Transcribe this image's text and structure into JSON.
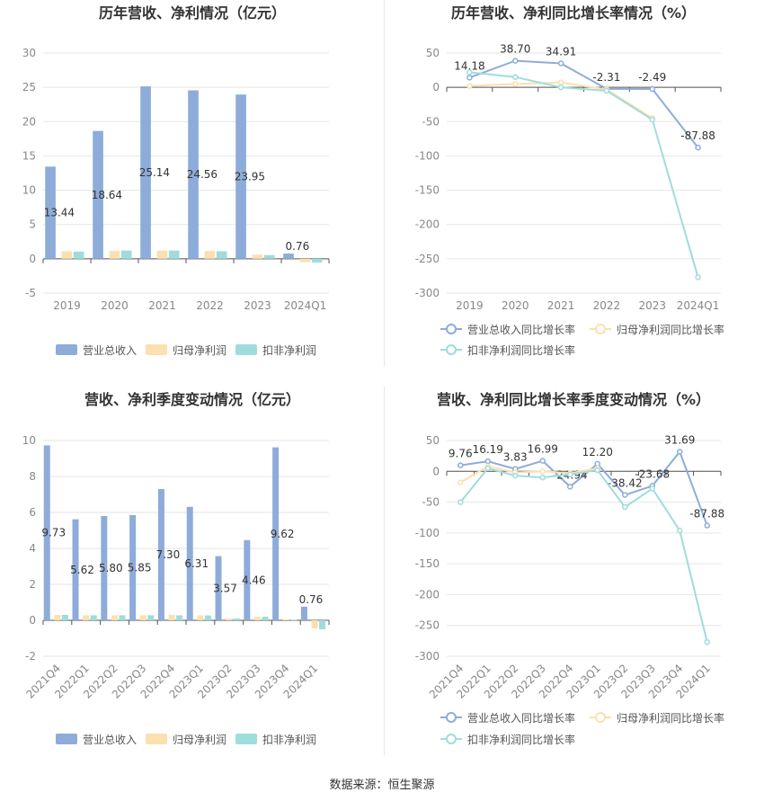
{
  "source": "数据来源：恒生聚源",
  "chart_data": [
    {
      "type": "bar",
      "title": "历年营收、净利情况（亿元）",
      "categories": [
        "2019",
        "2020",
        "2021",
        "2022",
        "2023",
        "2024Q1"
      ],
      "ylim": [
        -5,
        30
      ],
      "yticks": [
        30,
        25,
        20,
        15,
        10,
        5,
        0,
        -5
      ],
      "series": [
        {
          "name": "营业总收入",
          "color": "#8eacd9",
          "values": [
            13.44,
            18.64,
            25.14,
            24.56,
            23.95,
            0.76
          ],
          "labels": [
            "13.44",
            "18.64",
            "25.14",
            "24.56",
            "23.95",
            "0.76"
          ]
        },
        {
          "name": "归母净利润",
          "color": "#fbe0b0",
          "values": [
            1.1,
            1.15,
            1.2,
            1.15,
            0.6,
            -0.5
          ]
        },
        {
          "name": "扣非净利润",
          "color": "#9fdcdc",
          "values": [
            1.05,
            1.2,
            1.2,
            1.1,
            0.55,
            -0.55
          ]
        }
      ],
      "grid": true,
      "legend": "bottom"
    },
    {
      "type": "line",
      "title": "历年营收、净利同比增长率情况（%）",
      "categories": [
        "2019",
        "2020",
        "2021",
        "2022",
        "2023",
        "2024Q1"
      ],
      "ylim": [
        -300,
        50
      ],
      "yticks": [
        50,
        0,
        -50,
        -100,
        -150,
        -200,
        -250,
        -300
      ],
      "series": [
        {
          "name": "营业总收入同比增长率",
          "color": "#8eacd9",
          "values": [
            14.18,
            38.7,
            34.91,
            -2.31,
            -2.49,
            -87.88
          ],
          "labels": [
            "14.18",
            "38.70",
            "34.91",
            "-2.31",
            "-2.49",
            "-87.88"
          ]
        },
        {
          "name": "归母净利润同比增长率",
          "color": "#fbe0b0",
          "values": [
            2,
            5,
            7,
            -3,
            -45,
            null
          ]
        },
        {
          "name": "扣非净利润同比增长率",
          "color": "#9fdcdc",
          "values": [
            22,
            15,
            0,
            -5,
            -47,
            -277
          ]
        }
      ],
      "grid": true,
      "legend": "bottom"
    },
    {
      "type": "bar",
      "title": "营收、净利季度变动情况（亿元）",
      "categories": [
        "2021Q4",
        "2022Q1",
        "2022Q2",
        "2022Q3",
        "2022Q4",
        "2023Q1",
        "2023Q2",
        "2023Q3",
        "2023Q4",
        "2024Q1"
      ],
      "ylim": [
        -2,
        10
      ],
      "yticks": [
        10,
        8,
        6,
        4,
        2,
        0,
        -2
      ],
      "series": [
        {
          "name": "营业总收入",
          "color": "#8eacd9",
          "values": [
            9.73,
            5.62,
            5.8,
            5.85,
            7.3,
            6.31,
            3.57,
            4.46,
            9.62,
            0.76
          ],
          "labels": [
            "9.73",
            "5.62",
            "5.80",
            "5.85",
            "7.30",
            "6.31",
            "3.57",
            "4.46",
            "9.62",
            "0.76"
          ]
        },
        {
          "name": "归母净利润",
          "color": "#fbe0b0",
          "values": [
            0.3,
            0.28,
            0.28,
            0.28,
            0.3,
            0.28,
            0.1,
            0.2,
            0.05,
            -0.45
          ]
        },
        {
          "name": "扣非净利润",
          "color": "#9fdcdc",
          "values": [
            0.3,
            0.28,
            0.28,
            0.28,
            0.28,
            0.27,
            0.1,
            0.2,
            0.02,
            -0.5
          ]
        }
      ],
      "grid": true,
      "legend": "bottom"
    },
    {
      "type": "line",
      "title": "营收、净利同比增长率季度变动情况（%）",
      "categories": [
        "2021Q4",
        "2022Q1",
        "2022Q2",
        "2022Q3",
        "2022Q4",
        "2023Q1",
        "2023Q2",
        "2023Q3",
        "2023Q4",
        "2024Q1"
      ],
      "ylim": [
        -300,
        50
      ],
      "yticks": [
        50,
        0,
        -50,
        -100,
        -150,
        -200,
        -250,
        -300
      ],
      "series": [
        {
          "name": "营业总收入同比增长率",
          "color": "#8eacd9",
          "values": [
            9.76,
            16.19,
            3.83,
            16.99,
            -24.94,
            12.2,
            -38.42,
            -23.68,
            31.69,
            -87.88
          ],
          "labels": [
            "9.76",
            "16.19",
            "3.83",
            "16.99",
            "-24.94",
            "12.20",
            "-38.42",
            "-23.68",
            "31.69",
            "-87.88"
          ]
        },
        {
          "name": "归母净利润同比增长率",
          "color": "#fbe0b0",
          "values": [
            -18,
            8,
            -2,
            0,
            -3,
            5,
            null,
            null,
            null,
            null
          ]
        },
        {
          "name": "扣非净利润同比增长率",
          "color": "#9fdcdc",
          "values": [
            -50,
            5,
            -7,
            -10,
            -5,
            2,
            -58,
            -28,
            -96,
            -277
          ]
        }
      ],
      "grid": true,
      "legend": "bottom"
    }
  ]
}
